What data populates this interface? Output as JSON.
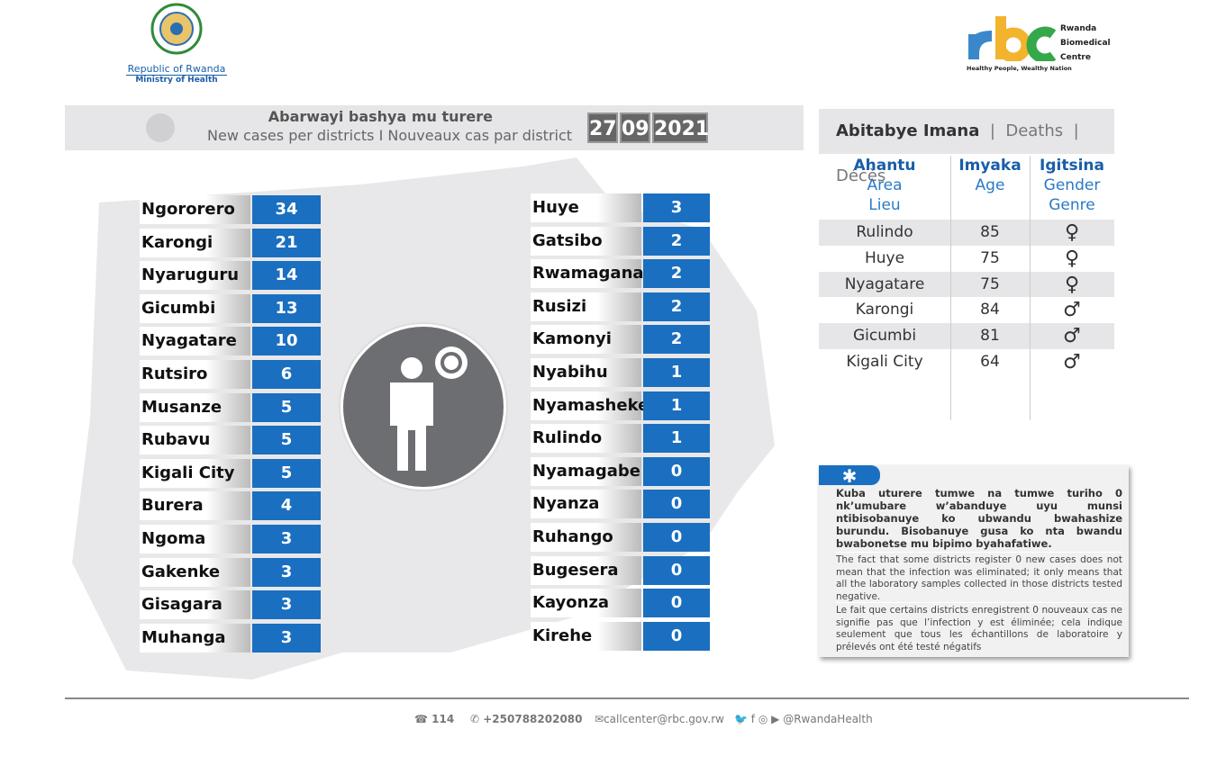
{
  "header": {
    "left_logo": {
      "line1": "Republic of Rwanda",
      "line2": "Ministry of Health"
    },
    "right_logo": {
      "letters": "rbc",
      "name_lines": [
        "Rwanda",
        "Biomedical",
        "Centre"
      ],
      "tagline": "Healthy People, Wealthy Nation"
    }
  },
  "banner": {
    "title_rw": "Abarwayi bashya mu turere",
    "title_en_fr": "New cases per districts  I  Nouveaux cas par district",
    "date": {
      "day": "27",
      "month": "09",
      "year": "2021"
    }
  },
  "colors": {
    "value_box": "#1a6fc0",
    "banner": "#e6e6e8",
    "circle": "#6d6e71"
  },
  "districts_left": [
    {
      "name": "Ngororero",
      "cases": "34"
    },
    {
      "name": "Karongi",
      "cases": "21"
    },
    {
      "name": "Nyaruguru",
      "cases": "14"
    },
    {
      "name": "Gicumbi",
      "cases": "13"
    },
    {
      "name": "Nyagatare",
      "cases": "10"
    },
    {
      "name": "Rutsiro",
      "cases": "6"
    },
    {
      "name": "Musanze",
      "cases": "5"
    },
    {
      "name": "Rubavu",
      "cases": "5"
    },
    {
      "name": "Kigali City",
      "cases": "5"
    },
    {
      "name": "Burera",
      "cases": "4"
    },
    {
      "name": "Ngoma",
      "cases": "3"
    },
    {
      "name": "Gakenke",
      "cases": "3"
    },
    {
      "name": "Gisagara",
      "cases": "3"
    },
    {
      "name": "Muhanga",
      "cases": "3"
    }
  ],
  "districts_right": [
    {
      "name": "Huye",
      "cases": "3"
    },
    {
      "name": "Gatsibo",
      "cases": "2"
    },
    {
      "name": "Rwamagana",
      "cases": "2"
    },
    {
      "name": "Rusizi",
      "cases": "2"
    },
    {
      "name": "Kamonyi",
      "cases": "2"
    },
    {
      "name": "Nyabihu",
      "cases": "1"
    },
    {
      "name": "Nyamasheke",
      "cases": "1"
    },
    {
      "name": "Rulindo",
      "cases": "1"
    },
    {
      "name": "Nyamagabe",
      "cases": "0"
    },
    {
      "name": "Nyanza",
      "cases": "0"
    },
    {
      "name": "Ruhango",
      "cases": "0"
    },
    {
      "name": "Bugesera",
      "cases": "0"
    },
    {
      "name": "Kayonza",
      "cases": "0"
    },
    {
      "name": "Kirehe",
      "cases": "0"
    }
  ],
  "deaths": {
    "title": "Abitabye Imana",
    "title_en": "Deaths",
    "title_fr": "Décès",
    "columns": [
      {
        "rw": "Ahantu",
        "en": "Area",
        "fr": "Lieu"
      },
      {
        "rw": "Imyaka",
        "en": "Age",
        "fr": ""
      },
      {
        "rw": "Igitsina",
        "en": "Gender",
        "fr": "Genre"
      }
    ],
    "rows": [
      {
        "area": "Rulindo",
        "age": "85",
        "gender": "female"
      },
      {
        "area": "Huye",
        "age": "75",
        "gender": "female"
      },
      {
        "area": "Nyagatare",
        "age": "75",
        "gender": "female"
      },
      {
        "area": "Karongi",
        "age": "84",
        "gender": "male"
      },
      {
        "area": "Gicumbi",
        "age": "81",
        "gender": "male"
      },
      {
        "area": "Kigali City",
        "age": "64",
        "gender": "male"
      }
    ]
  },
  "note": {
    "rw": "Kuba uturere tumwe na tumwe turiho 0 nk’umubare w’abanduye  uyu munsi ntibisobanuye ko ubwandu bwahashize burundu. Bisobanuye gusa ko nta bwandu bwabonetse mu bipimo byahafatiwe.",
    "en": "The fact that some districts register 0 new cases does not mean that the infection was eliminated; it only means that all the laboratory samples collected in those districts tested negative.",
    "fr": "Le fait que certains districts enregistrent 0 nouveaux cas ne signifie pas que l’infection y est éliminée; cela indique seulement que tous les échantillons de laboratoire y prélevés ont été testé négatifs"
  },
  "footer": {
    "hotline": "114",
    "whatsapp": "+250788202080",
    "email": "callcenter@rbc.gov.rw",
    "social": "@RwandaHealth"
  }
}
